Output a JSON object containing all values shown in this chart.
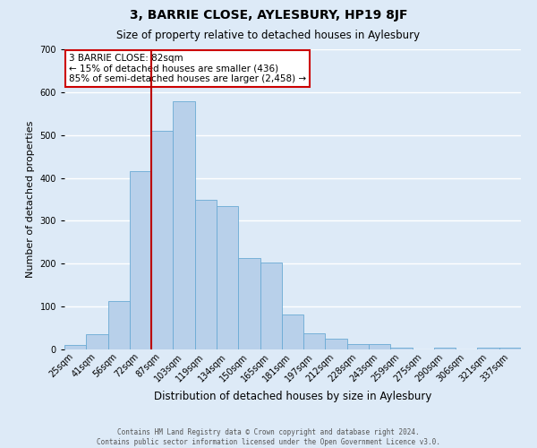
{
  "title": "3, BARRIE CLOSE, AYLESBURY, HP19 8JF",
  "subtitle": "Size of property relative to detached houses in Aylesbury",
  "xlabel": "Distribution of detached houses by size in Aylesbury",
  "ylabel": "Number of detached properties",
  "bar_labels": [
    "25sqm",
    "41sqm",
    "56sqm",
    "72sqm",
    "87sqm",
    "103sqm",
    "119sqm",
    "134sqm",
    "150sqm",
    "165sqm",
    "181sqm",
    "197sqm",
    "212sqm",
    "228sqm",
    "243sqm",
    "259sqm",
    "275sqm",
    "290sqm",
    "306sqm",
    "321sqm",
    "337sqm"
  ],
  "bar_values": [
    10,
    35,
    112,
    415,
    510,
    578,
    348,
    335,
    213,
    202,
    82,
    37,
    25,
    13,
    13,
    4,
    0,
    4,
    0,
    4,
    4
  ],
  "bar_color": "#b8d0ea",
  "bar_edge_color": "#6aaad4",
  "background_color": "#ddeaf7",
  "grid_color": "#ffffff",
  "ylim": [
    0,
    700
  ],
  "vline_index": 4,
  "vline_color": "#bb0000",
  "annotation_title": "3 BARRIE CLOSE: 82sqm",
  "annotation_line1": "← 15% of detached houses are smaller (436)",
  "annotation_line2": "85% of semi-detached houses are larger (2,458) →",
  "annotation_box_facecolor": "#ffffff",
  "annotation_box_edgecolor": "#cc0000",
  "footer1": "Contains HM Land Registry data © Crown copyright and database right 2024.",
  "footer2": "Contains public sector information licensed under the Open Government Licence v3.0.",
  "title_fontsize": 10,
  "subtitle_fontsize": 8.5,
  "ylabel_fontsize": 8,
  "xlabel_fontsize": 8.5,
  "tick_fontsize": 7,
  "footer_fontsize": 5.5
}
